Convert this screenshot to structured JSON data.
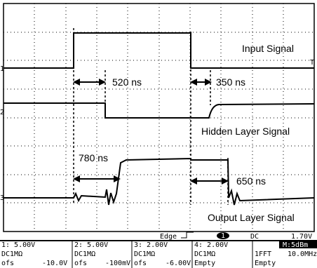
{
  "screen": {
    "annotations": {
      "input": "Input Signal",
      "hidden": "Hidden Layer Signal",
      "output": "Output Layer Signal",
      "t1": "520 ns",
      "t2": "350 ns",
      "t3": "780 ns",
      "t4": "650 ns"
    },
    "markers": {
      "ch1": "1",
      "ch2": "2",
      "ch3": "3",
      "trigger": "T"
    },
    "status": {
      "trigger_type": "Edge",
      "trigger_source": "1",
      "coupling": "DC",
      "trigger_level": "1.70V",
      "channels": [
        {
          "scale": "1: 5.00V",
          "input": "DC1MΩ",
          "offset_label": "ofs",
          "offset": "-10.0V"
        },
        {
          "scale": "2: 5.00V",
          "input": "DC1MΩ",
          "offset_label": "ofs",
          "offset": "-100mV"
        },
        {
          "scale": "3: 2.00V",
          "input": "DC1MΩ",
          "offset_label": "ofs",
          "offset": "-6.00V"
        },
        {
          "scale": "4: 2.00V",
          "input": "DC1MΩ",
          "offset_label": "Empty",
          "offset": ""
        }
      ],
      "math": {
        "scale": "M:5dBm",
        "mode": "1FFT",
        "freq": "10.0MHz",
        "state": "Empty"
      }
    }
  }
}
